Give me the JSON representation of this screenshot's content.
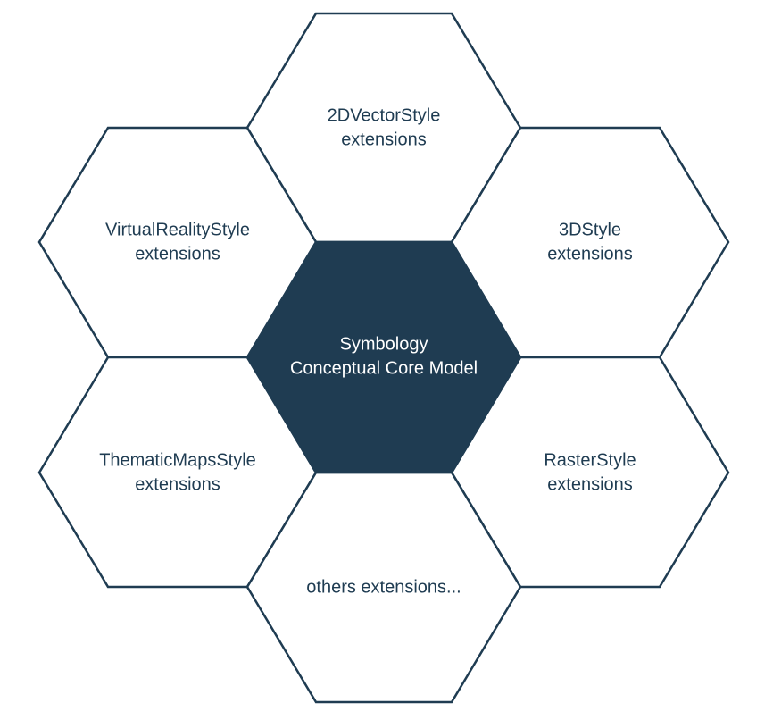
{
  "colors": {
    "stroke": "#1f3c52",
    "core_fill": "#1f3c52",
    "core_text": "#ffffff",
    "outer_fill": "#ffffff",
    "outer_text": "#1f3c52"
  },
  "core": {
    "line1": "Symbology",
    "line2": "Conceptual Core Model"
  },
  "extensions": {
    "vector2d": {
      "line1": "2DVectorStyle",
      "line2": "extensions"
    },
    "virtual_reality": {
      "line1": "VirtualRealityStyle",
      "line2": "extensions"
    },
    "style3d": {
      "line1": "3DStyle",
      "line2": "extensions"
    },
    "thematic_maps": {
      "line1": "ThematicMapsStyle",
      "line2": "extensions"
    },
    "raster": {
      "line1": "RasterStyle",
      "line2": "extensions"
    },
    "others": {
      "line1": "others extensions..."
    }
  }
}
